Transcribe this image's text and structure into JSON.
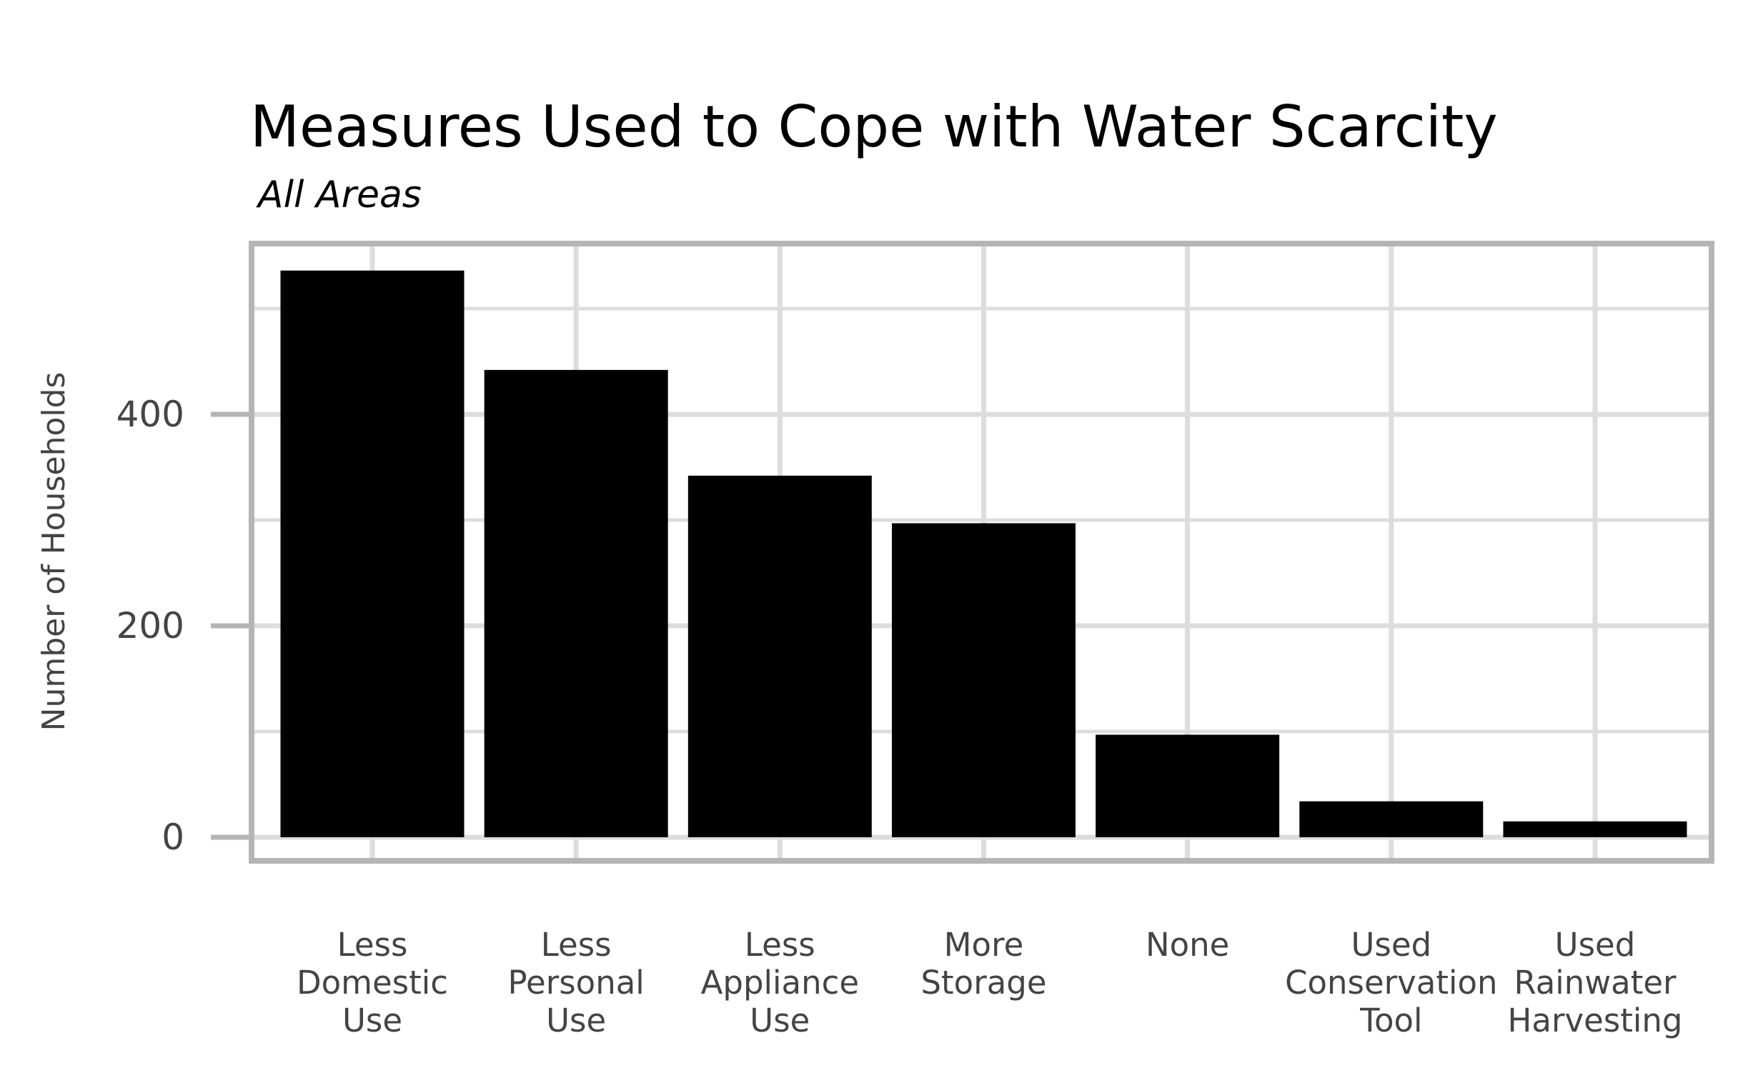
{
  "chart_data": {
    "type": "bar",
    "title": "Measures Used to Cope with Water Scarcity",
    "subtitle": "All Areas",
    "xlabel": "",
    "ylabel": "Number of Households",
    "categories": [
      "Less Domestic Use",
      "Less Personal Use",
      "Less Appliance Use",
      "More Storage",
      "None",
      "Used Conservation Tool",
      "Used Rainwater Harvesting"
    ],
    "category_lines": [
      [
        "Less",
        "Domestic",
        "Use"
      ],
      [
        "Less",
        "Personal",
        "Use"
      ],
      [
        "Less",
        "Appliance",
        "Use"
      ],
      [
        "More",
        "Storage"
      ],
      [
        "None"
      ],
      [
        "Used",
        "Conservation",
        "Tool"
      ],
      [
        "Used",
        "Rainwater",
        "Harvesting"
      ]
    ],
    "values": [
      536,
      442,
      342,
      297,
      97,
      34,
      15
    ],
    "ylim": [
      -23,
      560
    ],
    "yticks": [
      0,
      200,
      400
    ],
    "ytick_labels": [
      "0",
      "200",
      "400"
    ],
    "grid": true,
    "bar_color": "#000000",
    "grid_color": "#dddddd",
    "panel_border_color": "#b5b5b5",
    "axis_tick_color": "#b5b5b5"
  }
}
